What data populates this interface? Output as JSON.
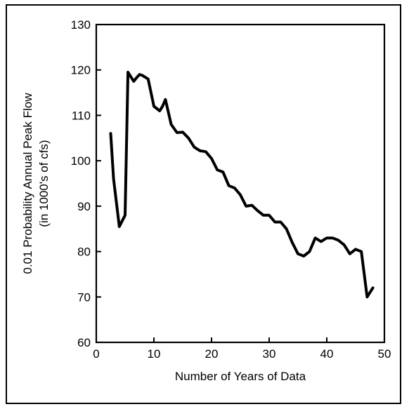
{
  "chart_data": {
    "type": "line",
    "title": "",
    "xlabel": "Number of Years of Data",
    "ylabel_line1": "0.01 Probability Annual Peak Flow",
    "ylabel_line2": "(in 1000's of cfs)",
    "xlim": [
      0,
      50
    ],
    "ylim": [
      60,
      130
    ],
    "x_ticks": [
      0,
      10,
      20,
      30,
      40,
      50
    ],
    "y_ticks": [
      60,
      70,
      80,
      90,
      100,
      110,
      120,
      130
    ],
    "x_tick_labels": [
      "0",
      "10",
      "20",
      "30",
      "40",
      "50"
    ],
    "y_tick_labels": [
      "60",
      "70",
      "80",
      "90",
      "100",
      "110",
      "120",
      "130"
    ],
    "grid": false,
    "series": [
      {
        "color": "#000000",
        "x": [
          2.5,
          3,
          4,
          5,
          5.5,
          6,
          6.5,
          7,
          7.5,
          8,
          9,
          10,
          11,
          11.5,
          12,
          13,
          14,
          15,
          16,
          17,
          18,
          19,
          20,
          21,
          22,
          23,
          24,
          25,
          26,
          27,
          28,
          29,
          30,
          31,
          32,
          33,
          34,
          35,
          36,
          37,
          38,
          39,
          40,
          41,
          42,
          43,
          44,
          45,
          46,
          47,
          48
        ],
        "y": [
          106,
          96,
          85.5,
          88,
          119.5,
          118.5,
          117.5,
          118.3,
          119,
          118.8,
          118,
          112,
          111,
          112,
          113.5,
          108,
          106.2,
          106.3,
          105,
          103,
          102.2,
          102,
          100.5,
          98,
          97.5,
          94.5,
          94,
          92.5,
          90,
          90.2,
          89,
          88,
          88,
          86.5,
          86.5,
          85,
          82,
          79.5,
          79,
          80,
          83,
          82.2,
          83,
          83,
          82.5,
          81.5,
          79.5,
          80.5,
          80,
          70,
          72
        ]
      }
    ]
  }
}
